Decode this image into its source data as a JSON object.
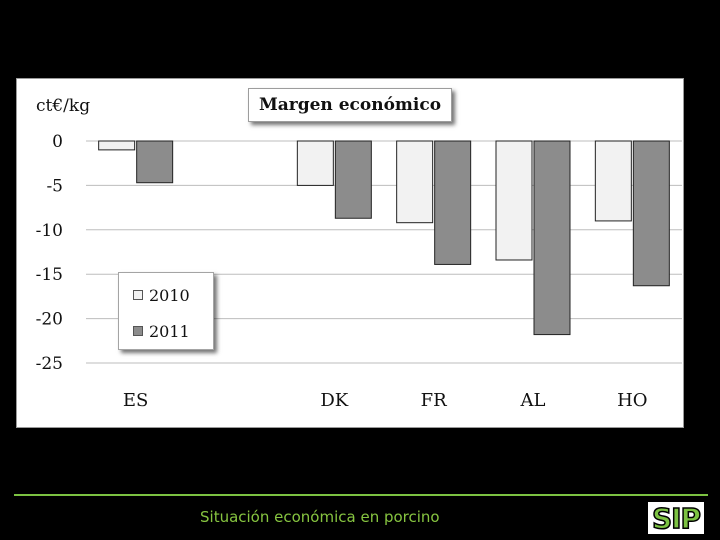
{
  "chart_data": {
    "type": "bar",
    "title": "Margen económico",
    "ylabel": "ct€/kg",
    "ylim": [
      -25,
      0
    ],
    "yticks": [
      0,
      -5,
      -10,
      -15,
      -20,
      -25
    ],
    "grid": true,
    "legend_position": "bottom-left",
    "categories": [
      "ES",
      "",
      "DK",
      "FR",
      "AL",
      "HO"
    ],
    "series": [
      {
        "name": "2010",
        "values": [
          -1.0,
          null,
          -5.0,
          -9.2,
          -13.4,
          -9.0
        ],
        "color": "#f2f2f2"
      },
      {
        "name": "2011",
        "values": [
          -4.7,
          null,
          -8.7,
          -13.9,
          -21.8,
          -16.3
        ],
        "color": "#8c8c8c"
      }
    ]
  },
  "footer": {
    "text": "Situación económica en porcino"
  },
  "logo": {
    "text": "SIP"
  },
  "colors": {
    "accent": "#7cc242",
    "background": "#000000"
  }
}
